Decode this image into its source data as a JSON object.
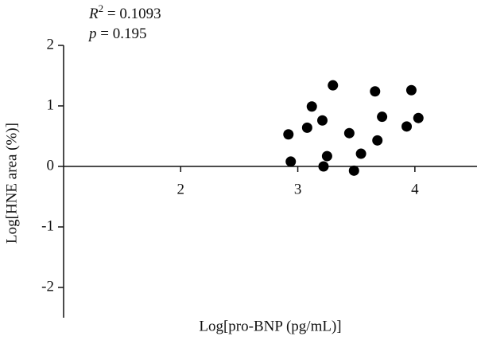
{
  "chart_data": {
    "type": "scatter",
    "x_label": "Log[pro-BNP (pg/mL)]",
    "y_label": "Log[HNE area (%)]",
    "annotations": [
      {
        "var": "R",
        "sup": "2",
        "text": " = 0.1093"
      },
      {
        "var": "p",
        "text": " = 0.195"
      }
    ],
    "x": [
      2.92,
      2.94,
      3.08,
      3.12,
      3.21,
      3.22,
      3.25,
      3.3,
      3.44,
      3.48,
      3.54,
      3.66,
      3.68,
      3.72,
      3.93,
      3.97,
      4.03
    ],
    "values": [
      0.53,
      0.08,
      0.64,
      0.99,
      0.76,
      0.0,
      0.17,
      1.34,
      0.55,
      -0.07,
      0.21,
      1.24,
      0.43,
      0.82,
      0.66,
      1.26,
      0.8
    ],
    "color": "#000000",
    "xlim": [
      1,
      4.5
    ],
    "ylim": [
      -2.5,
      2
    ],
    "xticks": [
      2,
      3,
      4
    ],
    "yticks": [
      -2,
      -1,
      0,
      1,
      2
    ]
  }
}
